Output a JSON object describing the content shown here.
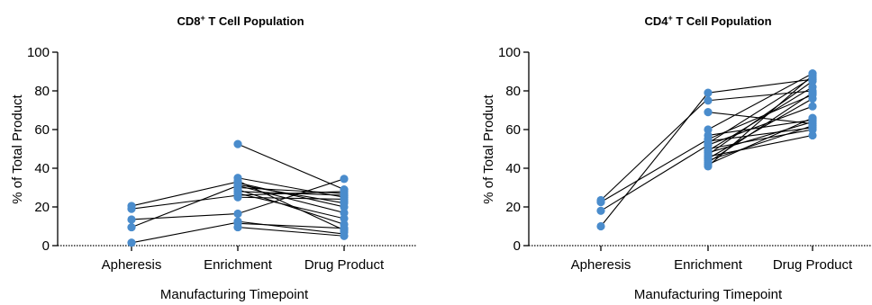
{
  "chart_data": [
    {
      "type": "scatter",
      "title_main": "CD8",
      "title_sup": "+",
      "title_rest": " T Cell Population",
      "xlabel": "Manufacturing Timepoint",
      "ylabel": "% of Total Product",
      "categories": [
        "Apheresis",
        "Enrichment",
        "Drug Product"
      ],
      "ylim": [
        0,
        100
      ],
      "yticks": [
        "0",
        "20",
        "40",
        "60",
        "80",
        "100"
      ],
      "ytick_values": [
        0,
        20,
        40,
        60,
        80,
        100
      ],
      "point_color": "#4a8ccc",
      "points": {
        "Apheresis": [
          20.5,
          19,
          13.5,
          9.5,
          1.5
        ],
        "Enrichment": [
          52.5,
          35,
          33.5,
          32.5,
          31.5,
          31,
          30,
          29,
          28,
          27,
          26,
          25,
          16.5,
          12.5,
          11.5,
          9.5
        ],
        "Drug Product": [
          34.5,
          29,
          28,
          27,
          26,
          25,
          24,
          23,
          22,
          20,
          17,
          14,
          11,
          9,
          8,
          7,
          5
        ]
      },
      "segments": [
        [
          0,
          20.5,
          1,
          33
        ],
        [
          0,
          19,
          1,
          26
        ],
        [
          0,
          13.5,
          1,
          16.5
        ],
        [
          0,
          9.5,
          1,
          31
        ],
        [
          0,
          1.5,
          1,
          12
        ],
        [
          1,
          52.5,
          2,
          29
        ],
        [
          1,
          35,
          2,
          25
        ],
        [
          1,
          33.5,
          2,
          8
        ],
        [
          1,
          32.5,
          2,
          20
        ],
        [
          1,
          31.5,
          2,
          22
        ],
        [
          1,
          31,
          2,
          17
        ],
        [
          1,
          30,
          2,
          27
        ],
        [
          1,
          29,
          2,
          11
        ],
        [
          1,
          28,
          2,
          26
        ],
        [
          1,
          27,
          2,
          14
        ],
        [
          1,
          26,
          2,
          28
        ],
        [
          1,
          25,
          2,
          24
        ],
        [
          1,
          16.5,
          2,
          34.5
        ],
        [
          1,
          12.5,
          2,
          6
        ],
        [
          1,
          11.5,
          2,
          9
        ],
        [
          1,
          9.5,
          2,
          5
        ]
      ]
    },
    {
      "type": "scatter",
      "title_main": "CD4",
      "title_sup": "+",
      "title_rest": " T Cell Population",
      "xlabel": "Manufacturing Timepoint",
      "ylabel": "% of Total Product",
      "categories": [
        "Apheresis",
        "Enrichment",
        "Drug Product"
      ],
      "ylim": [
        0,
        100
      ],
      "yticks": [
        "0",
        "20",
        "40",
        "60",
        "80",
        "100"
      ],
      "ytick_values": [
        0,
        20,
        40,
        60,
        80,
        100
      ],
      "point_color": "#4a8ccc",
      "points": {
        "Apheresis": [
          23.5,
          22.5,
          18,
          10
        ],
        "Enrichment": [
          79,
          75,
          69,
          60,
          57,
          55,
          54,
          53,
          52,
          50,
          49,
          48,
          47,
          46,
          45,
          44,
          43,
          42,
          41
        ],
        "Drug Product": [
          89,
          88,
          87,
          86,
          85,
          82,
          80,
          79,
          78,
          76,
          72,
          66,
          65,
          64,
          63,
          62,
          61,
          60,
          57
        ]
      },
      "segments": [
        [
          0,
          23.5,
          1,
          76
        ],
        [
          0,
          22.5,
          1,
          55
        ],
        [
          0,
          18,
          1,
          52
        ],
        [
          0,
          10,
          1,
          79
        ],
        [
          1,
          79,
          2,
          86
        ],
        [
          1,
          75,
          2,
          80
        ],
        [
          1,
          69,
          2,
          63
        ],
        [
          1,
          60,
          2,
          89
        ],
        [
          1,
          57,
          2,
          65
        ],
        [
          1,
          55,
          2,
          78
        ],
        [
          1,
          54,
          2,
          61
        ],
        [
          1,
          53,
          2,
          87
        ],
        [
          1,
          52,
          2,
          72
        ],
        [
          1,
          50,
          2,
          60
        ],
        [
          1,
          49,
          2,
          82
        ],
        [
          1,
          48,
          2,
          64
        ],
        [
          1,
          47,
          2,
          85
        ],
        [
          1,
          46,
          2,
          57
        ],
        [
          1,
          45,
          2,
          76
        ],
        [
          1,
          44,
          2,
          62
        ],
        [
          1,
          43,
          2,
          79
        ],
        [
          1,
          42,
          2,
          66
        ],
        [
          1,
          41,
          2,
          88
        ]
      ]
    }
  ]
}
